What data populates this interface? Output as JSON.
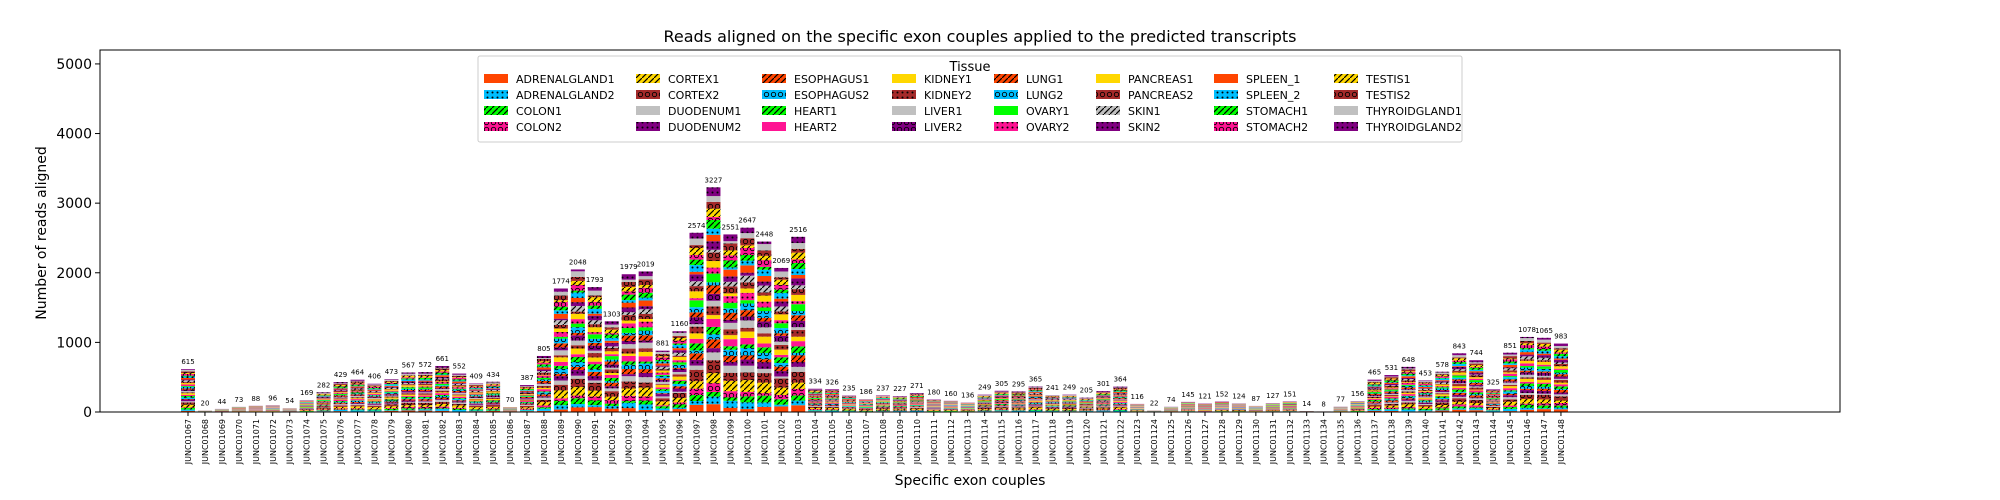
{
  "chart_data": {
    "type": "bar",
    "stacked": true,
    "title": "Reads aligned on the specific exon couples applied to the predicted transcripts",
    "xlabel": "Specific exon couples",
    "ylabel": "Number of reads aligned",
    "ylim": [
      0,
      5200
    ],
    "yticks": [
      0,
      1000,
      2000,
      3000,
      4000,
      5000
    ],
    "grid": false,
    "legend_title": "Tissue",
    "legend_position": "top-center",
    "categories": [
      "JUNC01067",
      "JUNC01068",
      "JUNC01069",
      "JUNC01070",
      "JUNC01071",
      "JUNC01072",
      "JUNC01073",
      "JUNC01074",
      "JUNC01075",
      "JUNC01076",
      "JUNC01077",
      "JUNC01078",
      "JUNC01079",
      "JUNC01080",
      "JUNC01081",
      "JUNC01082",
      "JUNC01083",
      "JUNC01084",
      "JUNC01085",
      "JUNC01086",
      "JUNC01087",
      "JUNC01088",
      "JUNC01089",
      "JUNC01090",
      "JUNC01091",
      "JUNC01092",
      "JUNC01093",
      "JUNC01094",
      "JUNC01095",
      "JUNC01096",
      "JUNC01097",
      "JUNC01098",
      "JUNC01099",
      "JUNC01100",
      "JUNC01101",
      "JUNC01102",
      "JUNC01103",
      "JUNC01104",
      "JUNC01105",
      "JUNC01106",
      "JUNC01107",
      "JUNC01108",
      "JUNC01109",
      "JUNC01110",
      "JUNC01111",
      "JUNC01112",
      "JUNC01113",
      "JUNC01114",
      "JUNC01115",
      "JUNC01116",
      "JUNC01117",
      "JUNC01118",
      "JUNC01119",
      "JUNC01120",
      "JUNC01121",
      "JUNC01122",
      "JUNC01123",
      "JUNC01124",
      "JUNC01125",
      "JUNC01126",
      "JUNC01127",
      "JUNC01128",
      "JUNC01129",
      "JUNC01130",
      "JUNC01131",
      "JUNC01132",
      "JUNC01133",
      "JUNC01134",
      "JUNC01135",
      "JUNC01136",
      "JUNC01137",
      "JUNC01138",
      "JUNC01139",
      "JUNC01140",
      "JUNC01141",
      "JUNC01142",
      "JUNC01143",
      "JUNC01144",
      "JUNC01145",
      "JUNC01146",
      "JUNC01147",
      "JUNC01148"
    ],
    "totals": [
      615,
      20,
      44,
      73,
      88,
      96,
      54,
      169,
      282,
      429,
      464,
      406,
      473,
      567,
      572,
      661,
      552,
      409,
      434,
      70,
      387,
      805,
      1774,
      2048,
      1793,
      1303,
      1979,
      2019,
      881,
      1160,
      2574,
      3227,
      2551,
      2647,
      2448,
      2069,
      2516,
      334,
      326,
      235,
      186,
      237,
      227,
      271,
      180,
      160,
      136,
      249,
      305,
      295,
      365,
      241,
      249,
      205,
      301,
      364,
      116,
      22,
      74,
      145,
      121,
      152,
      124,
      87,
      127,
      151,
      14,
      8,
      77,
      156,
      465,
      531,
      648,
      453,
      578,
      843,
      744,
      325,
      851,
      1078,
      1065,
      983
    ],
    "series": [
      {
        "name": "ADRENALGLAND1",
        "color": "#ff4500",
        "pattern": "none"
      },
      {
        "name": "ADRENALGLAND2",
        "color": "#00bfff",
        "pattern": "dots"
      },
      {
        "name": "COLON1",
        "color": "#00ff00",
        "pattern": "slash"
      },
      {
        "name": "COLON2",
        "color": "#ff1493",
        "pattern": "circles"
      },
      {
        "name": "CORTEX1",
        "color": "#ffd700",
        "pattern": "slash"
      },
      {
        "name": "CORTEX2",
        "color": "#a52a2a",
        "pattern": "circles"
      },
      {
        "name": "DUODENUM1",
        "color": "#c0c0c0",
        "pattern": "none"
      },
      {
        "name": "DUODENUM2",
        "color": "#800080",
        "pattern": "dots"
      },
      {
        "name": "ESOPHAGUS1",
        "color": "#ff4500",
        "pattern": "slash"
      },
      {
        "name": "ESOPHAGUS2",
        "color": "#00bfff",
        "pattern": "circles"
      },
      {
        "name": "HEART1",
        "color": "#00ff00",
        "pattern": "slash"
      },
      {
        "name": "HEART2",
        "color": "#ff1493",
        "pattern": "none"
      },
      {
        "name": "KIDNEY1",
        "color": "#ffd700",
        "pattern": "none"
      },
      {
        "name": "KIDNEY2",
        "color": "#a52a2a",
        "pattern": "dots"
      },
      {
        "name": "LIVER1",
        "color": "#c0c0c0",
        "pattern": "none"
      },
      {
        "name": "LIVER2",
        "color": "#800080",
        "pattern": "circles"
      },
      {
        "name": "LUNG1",
        "color": "#ff4500",
        "pattern": "slash"
      },
      {
        "name": "LUNG2",
        "color": "#00bfff",
        "pattern": "circles"
      },
      {
        "name": "OVARY1",
        "color": "#00ff00",
        "pattern": "none"
      },
      {
        "name": "OVARY2",
        "color": "#ff1493",
        "pattern": "dots"
      },
      {
        "name": "PANCREAS1",
        "color": "#ffd700",
        "pattern": "none"
      },
      {
        "name": "PANCREAS2",
        "color": "#a52a2a",
        "pattern": "circles"
      },
      {
        "name": "SKIN1",
        "color": "#c0c0c0",
        "pattern": "slash"
      },
      {
        "name": "SKIN2",
        "color": "#800080",
        "pattern": "dots"
      },
      {
        "name": "SPLEEN_1",
        "color": "#ff4500",
        "pattern": "none"
      },
      {
        "name": "SPLEEN_2",
        "color": "#00bfff",
        "pattern": "dots"
      },
      {
        "name": "STOMACH1",
        "color": "#00ff00",
        "pattern": "slash"
      },
      {
        "name": "STOMACH2",
        "color": "#ff1493",
        "pattern": "circles"
      },
      {
        "name": "TESTIS1",
        "color": "#ffd700",
        "pattern": "slash"
      },
      {
        "name": "TESTIS2",
        "color": "#a52a2a",
        "pattern": "circles"
      },
      {
        "name": "THYROIDGLAND1",
        "color": "#c0c0c0",
        "pattern": "none"
      },
      {
        "name": "THYROIDGLAND2",
        "color": "#800080",
        "pattern": "dots"
      }
    ]
  }
}
